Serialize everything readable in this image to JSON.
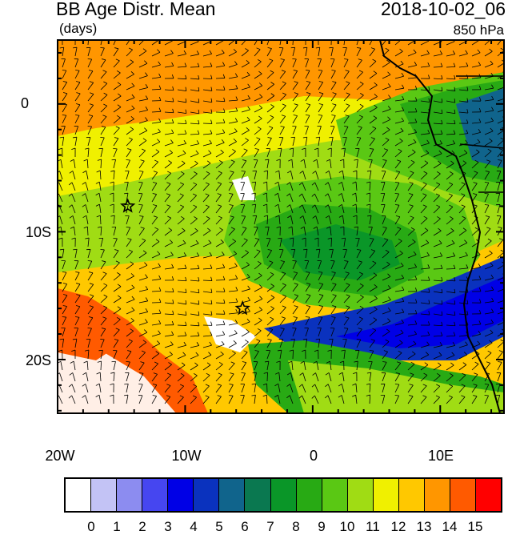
{
  "header": {
    "title": "BB Age Distr. Mean",
    "units": "(days)",
    "datetime": "2018-10-02_06",
    "level": "850 hPa"
  },
  "axes": {
    "x_ticks": [
      "20W",
      "10W",
      "0",
      "10E"
    ],
    "y_ticks": [
      "0",
      "10S",
      "20S"
    ]
  },
  "colorbar": {
    "labels": [
      "0",
      "1",
      "2",
      "3",
      "4",
      "5",
      "6",
      "7",
      "8",
      "9",
      "10",
      "11",
      "12",
      "13",
      "14",
      "15"
    ],
    "colors": [
      "#ffffff",
      "#c3c3f5",
      "#8c8cf0",
      "#4646f0",
      "#0000e6",
      "#0a32be",
      "#10648c",
      "#0a7850",
      "#0a9628",
      "#28aa14",
      "#5ac814",
      "#a0dc14",
      "#f0f000",
      "#ffc800",
      "#ff9600",
      "#ff5a00",
      "#ff0000"
    ]
  },
  "markers": [
    {
      "name": "star-marker",
      "lon": -14.5,
      "lat": -8
    },
    {
      "name": "star-marker",
      "lon": -5.5,
      "lat": -16
    }
  ]
}
